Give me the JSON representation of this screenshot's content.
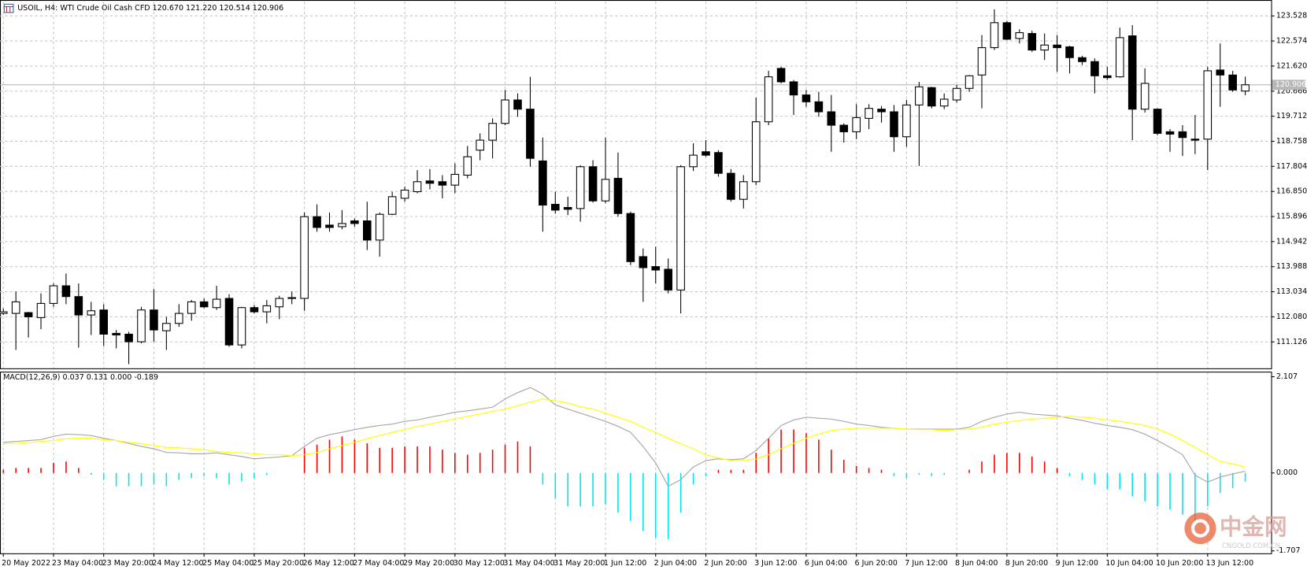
{
  "chart_data": [
    {
      "type": "candlestick",
      "title": "USOIL, H4:  WTI Crude Oil Cash CFD  120.670 121.220 120.514 120.906",
      "x": [
        "20 May 2022",
        null,
        null,
        null,
        "23 May 04:00",
        null,
        null,
        null,
        "23 May 20:00",
        null,
        null,
        null,
        "24 May 12:00",
        null,
        null,
        null,
        "25 May 04:00",
        null,
        null,
        null,
        "25 May 20:00",
        null,
        null,
        null,
        "26 May 12:00",
        null,
        null,
        null,
        "27 May 04:00",
        null,
        null,
        null,
        "29 May 20:00",
        null,
        null,
        null,
        "30 May 12:00",
        null,
        null,
        null,
        "31 May 04:00",
        null,
        null,
        null,
        "31 May 20:00",
        null,
        null,
        null,
        "1 Jun 12:00",
        null,
        null,
        null,
        "2 Jun 04:00",
        null,
        null,
        null,
        "2 Jun 20:00",
        null,
        null,
        null,
        "3 Jun 12:00",
        null,
        null,
        null,
        "6 Jun 04:00",
        null,
        null,
        null,
        "6 Jun 20:00",
        null,
        null,
        null,
        "7 Jun 12:00",
        null,
        null,
        null,
        "8 Jun 04:00",
        null,
        null,
        null,
        "8 Jun 20:00",
        null,
        null,
        null,
        "9 Jun 12:00",
        null,
        null,
        null,
        "10 Jun 04:00",
        null,
        null,
        null,
        "10 Jun 20:00",
        null,
        null,
        null,
        "13 Jun 12:00",
        null,
        null,
        null
      ],
      "open": [
        112.21,
        112.21,
        112.24,
        112.05,
        112.59,
        113.26,
        112.85,
        112.15,
        112.34,
        111.45,
        111.42,
        111.13,
        112.34,
        111.55,
        111.83,
        112.21,
        112.65,
        112.43,
        112.78,
        111.01,
        112.43,
        112.27,
        112.46,
        112.78,
        112.78,
        115.89,
        115.57,
        115.51,
        115.73,
        115.73,
        115.0,
        115.98,
        116.59,
        116.84,
        117.25,
        117.22,
        117.09,
        117.47,
        118.42,
        118.8,
        119.44,
        120.33,
        119.98,
        118.01,
        116.36,
        116.24,
        116.2,
        117.79,
        116.49,
        117.35,
        116.01,
        114.37,
        113.99,
        113.89,
        113.1,
        117.79,
        118.36,
        118.33,
        117.54,
        116.55,
        117.22,
        119.5,
        121.53,
        121.02,
        120.52,
        120.26,
        119.88,
        119.37,
        119.12,
        119.63,
        119.98,
        119.88,
        118.93,
        120.14,
        120.8,
        120.1,
        120.33,
        120.77,
        121.28,
        122.32,
        123.27,
        122.67,
        122.86,
        122.23,
        122.42,
        122.35,
        121.94,
        121.79,
        121.25,
        121.21,
        122.77,
        119.98,
        119.98,
        119.12,
        119.12,
        118.84,
        118.84,
        121.47,
        121.28,
        120.67
      ],
      "high": [
        112.4,
        113.04,
        112.27,
        112.97,
        113.35,
        113.73,
        113.35,
        112.65,
        112.56,
        111.58,
        111.51,
        112.46,
        113.13,
        112.08,
        112.56,
        112.72,
        112.78,
        113.26,
        112.94,
        112.46,
        112.53,
        112.72,
        112.88,
        113.04,
        116.05,
        116.36,
        116.05,
        116.14,
        115.82,
        116.46,
        116.05,
        116.84,
        117.03,
        117.66,
        117.7,
        117.47,
        117.92,
        118.58,
        119.06,
        119.63,
        120.71,
        120.58,
        121.21,
        118.9,
        116.84,
        116.65,
        117.85,
        118.04,
        118.9,
        118.33,
        116.08,
        114.68,
        114.75,
        114.3,
        117.85,
        118.68,
        118.8,
        118.42,
        117.7,
        117.47,
        120.42,
        121.44,
        121.59,
        121.09,
        120.71,
        120.64,
        120.52,
        119.44,
        120.17,
        120.17,
        120.1,
        120.14,
        120.33,
        121.02,
        120.83,
        120.58,
        120.9,
        121.28,
        122.8,
        123.78,
        123.34,
        123.02,
        122.96,
        122.86,
        122.8,
        122.39,
        122.01,
        121.91,
        121.59,
        123.08,
        123.18,
        121.53,
        120.01,
        119.22,
        119.37,
        119.76,
        121.59,
        122.48,
        121.44,
        121.22
      ],
      "low": [
        112.15,
        110.82,
        111.29,
        111.61,
        112.46,
        112.56,
        110.91,
        111.39,
        110.97,
        110.88,
        110.28,
        111.07,
        111.13,
        110.82,
        111.7,
        111.93,
        112.4,
        112.34,
        110.94,
        110.88,
        112.21,
        111.83,
        111.99,
        112.56,
        112.31,
        115.32,
        115.32,
        115.41,
        115.51,
        114.62,
        114.37,
        115.95,
        116.46,
        116.78,
        116.93,
        116.59,
        116.78,
        117.35,
        118.04,
        118.11,
        119.37,
        119.69,
        117.79,
        115.32,
        116.01,
        115.95,
        115.7,
        116.43,
        116.4,
        115.89,
        114.05,
        112.65,
        113.35,
        112.97,
        112.21,
        117.63,
        118.17,
        117.41,
        116.46,
        116.2,
        117.09,
        119.37,
        120.96,
        119.76,
        120.07,
        119.69,
        118.36,
        118.71,
        118.84,
        119.22,
        119.47,
        118.36,
        118.55,
        117.82,
        120.01,
        119.98,
        120.23,
        120.64,
        120.01,
        122.23,
        122.61,
        122.48,
        122.16,
        121.85,
        121.4,
        121.34,
        121.66,
        120.58,
        121.09,
        121.18,
        118.8,
        119.85,
        118.99,
        118.36,
        118.2,
        118.27,
        117.66,
        120.07,
        120.64,
        120.514
      ],
      "close": [
        112.27,
        112.65,
        112.08,
        112.59,
        113.26,
        112.85,
        112.15,
        112.31,
        111.42,
        111.39,
        111.13,
        112.34,
        111.58,
        111.83,
        112.21,
        112.65,
        112.46,
        112.75,
        111.01,
        112.43,
        112.27,
        112.5,
        112.78,
        112.81,
        115.89,
        115.48,
        115.48,
        115.63,
        115.63,
        115.0,
        115.98,
        116.65,
        116.9,
        117.22,
        117.16,
        117.09,
        117.5,
        118.17,
        118.8,
        119.44,
        120.33,
        119.98,
        118.11,
        116.33,
        116.14,
        116.17,
        117.79,
        116.49,
        117.31,
        116.01,
        114.18,
        113.95,
        113.86,
        113.1,
        117.79,
        118.23,
        118.23,
        117.54,
        116.55,
        117.22,
        119.5,
        121.21,
        121.02,
        120.52,
        120.26,
        119.88,
        119.37,
        119.12,
        119.66,
        120.01,
        119.88,
        118.93,
        120.14,
        120.83,
        120.1,
        120.36,
        120.77,
        121.25,
        122.32,
        123.27,
        122.64,
        122.89,
        122.23,
        122.42,
        122.32,
        121.94,
        121.79,
        121.25,
        121.18,
        122.7,
        119.98,
        120.96,
        119.06,
        119.03,
        118.9,
        118.8,
        121.44,
        121.28,
        120.71,
        120.906
      ],
      "up_color": "#ffffff",
      "down_color": "#000000",
      "ylim": [
        110.12,
        124.07
      ],
      "yticks": [
        111.126,
        {
          "value": 112.08,
          "label": "112.080"
        },
        113.034,
        113.988,
        114.942,
        115.896,
        {
          "value": 116.85,
          "label": "116.850"
        },
        117.804,
        118.758,
        119.712,
        120.666,
        {
          "value": 121.62,
          "label": "121.620"
        },
        122.574,
        123.528
      ],
      "grid": true
    },
    {
      "type": "macd",
      "title": "MACD(12,26,9) 0.037 0.131 0.000 -0.189",
      "series": [
        {
          "color": "#a8a8a8",
          "values": [
            0.67,
            0.69,
            0.71,
            0.73,
            0.8,
            0.85,
            0.84,
            0.82,
            0.76,
            0.71,
            0.65,
            0.58,
            0.53,
            0.45,
            0.44,
            0.42,
            0.42,
            0.44,
            0.4,
            0.36,
            0.31,
            0.33,
            0.35,
            0.38,
            0.58,
            0.76,
            0.84,
            0.89,
            0.95,
            1.0,
            1.04,
            1.07,
            1.13,
            1.16,
            1.22,
            1.27,
            1.33,
            1.36,
            1.4,
            1.44,
            1.62,
            1.76,
            1.87,
            1.73,
            1.49,
            1.4,
            1.31,
            1.22,
            1.13,
            1.02,
            0.89,
            0.58,
            0.22,
            -0.29,
            -0.15,
            0.13,
            0.27,
            0.31,
            0.29,
            0.31,
            0.49,
            0.76,
            1.04,
            1.16,
            1.22,
            1.2,
            1.18,
            1.13,
            1.07,
            1.04,
            1.0,
            0.98,
            0.96,
            0.96,
            0.96,
            0.96,
            0.96,
            1.0,
            1.13,
            1.22,
            1.29,
            1.33,
            1.29,
            1.27,
            1.25,
            1.2,
            1.15,
            1.09,
            1.04,
            1.0,
            0.95,
            0.85,
            0.71,
            0.56,
            0.4,
            -0.05,
            -0.2,
            -0.09,
            -0.02,
            0.037
          ]
        },
        {
          "color": "#ffff00",
          "values": [
            0.64,
            0.65,
            0.67,
            0.69,
            0.71,
            0.75,
            0.76,
            0.76,
            0.73,
            0.71,
            0.67,
            0.64,
            0.6,
            0.56,
            0.55,
            0.53,
            0.51,
            0.47,
            0.45,
            0.44,
            0.42,
            0.4,
            0.4,
            0.38,
            0.4,
            0.45,
            0.53,
            0.6,
            0.67,
            0.75,
            0.82,
            0.89,
            0.95,
            1.02,
            1.07,
            1.13,
            1.18,
            1.24,
            1.29,
            1.35,
            1.4,
            1.47,
            1.55,
            1.62,
            1.58,
            1.53,
            1.45,
            1.4,
            1.31,
            1.22,
            1.13,
            1.0,
            0.89,
            0.76,
            0.64,
            0.53,
            0.4,
            0.33,
            0.27,
            0.27,
            0.31,
            0.4,
            0.53,
            0.65,
            0.76,
            0.85,
            0.93,
            0.96,
            0.98,
            0.98,
            0.98,
            0.98,
            0.96,
            0.95,
            0.95,
            0.93,
            0.95,
            0.96,
            1.0,
            1.07,
            1.11,
            1.15,
            1.18,
            1.2,
            1.22,
            1.24,
            1.22,
            1.2,
            1.16,
            1.13,
            1.09,
            1.04,
            0.96,
            0.85,
            0.71,
            0.56,
            0.4,
            0.25,
            0.2,
            0.131
          ]
        }
      ],
      "histogram": {
        "up_color": "#ff0000",
        "down_color": "#00e5ee",
        "values": [
          0.07,
          0.11,
          0.11,
          0.11,
          0.22,
          0.25,
          0.11,
          -0.04,
          -0.15,
          -0.29,
          -0.29,
          -0.29,
          -0.25,
          -0.29,
          -0.15,
          -0.11,
          -0.07,
          -0.11,
          -0.25,
          -0.18,
          -0.11,
          -0.04,
          0,
          0,
          0.55,
          0.62,
          0.73,
          0.8,
          0.73,
          0.65,
          0.55,
          0.55,
          0.58,
          0.58,
          0.58,
          0.51,
          0.44,
          0.4,
          0.44,
          0.51,
          0.62,
          0.69,
          0.58,
          -0.25,
          -0.55,
          -0.73,
          -0.73,
          -0.73,
          -0.69,
          -0.87,
          -1.05,
          -1.27,
          -1.42,
          -1.45,
          -0.87,
          -0.25,
          -0.07,
          0.07,
          0.07,
          0.07,
          0.44,
          0.76,
          0.95,
          0.95,
          0.87,
          0.73,
          0.51,
          0.29,
          0.15,
          0.11,
          0.07,
          -0.07,
          -0.11,
          -0.04,
          -0.07,
          -0.04,
          0,
          0.07,
          0.25,
          0.4,
          0.44,
          0.44,
          0.36,
          0.25,
          0.11,
          -0.07,
          -0.15,
          -0.25,
          -0.36,
          -0.36,
          -0.51,
          -0.62,
          -0.73,
          -0.8,
          -0.91,
          -1.05,
          -0.73,
          -0.44,
          -0.33,
          -0.189
        ]
      },
      "ylim": [
        -1.76,
        2.2
      ],
      "yticks": [
        -1.707,
        {
          "value": 0,
          "label": "0.000"
        },
        2.107
      ]
    }
  ],
  "watermark": {
    "text": "中金网",
    "subtext": "CNGOLD.COM.CN"
  }
}
